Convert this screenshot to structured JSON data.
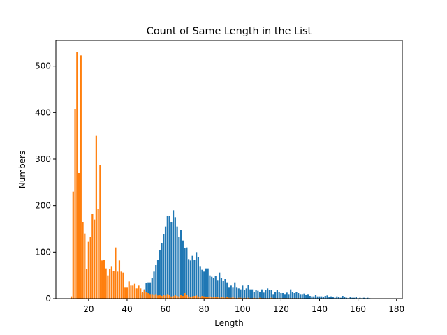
{
  "chart_data": {
    "type": "bar",
    "title": "Count of Same Length in the List",
    "xlabel": "Length",
    "ylabel": "Numbers",
    "xlim": [
      3,
      183
    ],
    "ylim": [
      0,
      555
    ],
    "xticks": [
      20,
      40,
      60,
      80,
      100,
      120,
      140,
      160,
      180
    ],
    "yticks": [
      0,
      100,
      200,
      300,
      400,
      500
    ],
    "grid": false,
    "legend": "none",
    "series": [
      {
        "color": "#1f77b4",
        "x": [
          47,
          48,
          49,
          50,
          51,
          52,
          53,
          54,
          55,
          56,
          57,
          58,
          59,
          60,
          61,
          62,
          63,
          64,
          65,
          66,
          67,
          68,
          69,
          70,
          71,
          72,
          73,
          74,
          75,
          76,
          77,
          78,
          79,
          80,
          81,
          82,
          83,
          84,
          85,
          86,
          87,
          88,
          89,
          90,
          91,
          92,
          93,
          94,
          95,
          96,
          97,
          98,
          99,
          100,
          101,
          102,
          103,
          104,
          105,
          106,
          107,
          108,
          109,
          110,
          111,
          112,
          113,
          114,
          115,
          116,
          117,
          118,
          119,
          120,
          121,
          122,
          123,
          124,
          125,
          126,
          127,
          128,
          129,
          130,
          131,
          132,
          133,
          134,
          135,
          136,
          137,
          138,
          139,
          140,
          141,
          142,
          143,
          144,
          145,
          146,
          147,
          148,
          149,
          150,
          151,
          152,
          153,
          154,
          155,
          156,
          157,
          158,
          159,
          160,
          161,
          162,
          163,
          164,
          165,
          166
        ],
        "values": [
          8,
          12,
          20,
          34,
          35,
          35,
          45,
          58,
          72,
          83,
          105,
          120,
          138,
          155,
          178,
          177,
          165,
          190,
          175,
          155,
          133,
          148,
          125,
          108,
          110,
          85,
          82,
          92,
          83,
          100,
          90,
          70,
          62,
          58,
          65,
          65,
          50,
          47,
          45,
          48,
          40,
          56,
          45,
          38,
          42,
          35,
          25,
          28,
          25,
          35,
          25,
          22,
          20,
          28,
          18,
          22,
          30,
          20,
          20,
          15,
          18,
          17,
          15,
          20,
          13,
          18,
          22,
          19,
          18,
          10,
          15,
          18,
          14,
          12,
          12,
          10,
          13,
          10,
          20,
          15,
          12,
          14,
          12,
          10,
          10,
          11,
          8,
          10,
          6,
          5,
          5,
          8,
          5,
          5,
          5,
          4,
          6,
          7,
          4,
          5,
          4,
          2,
          5,
          3,
          2,
          6,
          4,
          2,
          1,
          3,
          2,
          2,
          3,
          1,
          2,
          1,
          2,
          1,
          2,
          1
        ]
      },
      {
        "color": "#ff7f0e",
        "x": [
          11,
          12,
          13,
          14,
          15,
          16,
          17,
          18,
          19,
          20,
          21,
          22,
          23,
          24,
          25,
          26,
          27,
          28,
          29,
          30,
          31,
          32,
          33,
          34,
          35,
          36,
          37,
          38,
          39,
          40,
          41,
          42,
          43,
          44,
          45,
          46,
          47,
          48,
          49,
          50,
          51,
          52,
          53,
          54,
          55,
          56,
          57,
          58,
          59,
          60,
          61,
          62,
          63,
          64,
          65,
          66,
          67,
          68,
          69,
          70,
          71,
          72,
          73,
          74,
          75,
          76,
          77,
          78,
          79,
          80,
          81,
          82,
          83,
          84,
          85,
          86,
          87,
          88,
          89,
          90,
          91,
          92,
          93,
          94,
          95,
          96,
          97,
          98,
          99,
          100,
          101,
          102,
          103,
          104,
          105,
          106,
          107,
          108,
          109,
          110,
          111,
          112,
          113,
          114,
          115,
          116,
          117,
          118,
          119,
          120,
          121,
          122,
          123,
          124,
          125,
          126,
          127,
          128,
          129,
          130
        ],
        "values": [
          5,
          230,
          408,
          530,
          270,
          523,
          165,
          140,
          63,
          122,
          132,
          183,
          170,
          350,
          193,
          287,
          82,
          84,
          65,
          50,
          63,
          70,
          60,
          110,
          58,
          82,
          58,
          56,
          25,
          25,
          37,
          28,
          28,
          32,
          22,
          28,
          22,
          15,
          18,
          15,
          12,
          10,
          10,
          8,
          10,
          7,
          8,
          6,
          8,
          7,
          10,
          8,
          5,
          6,
          9,
          6,
          5,
          8,
          6,
          12,
          8,
          5,
          4,
          5,
          6,
          7,
          5,
          4,
          6,
          5,
          3,
          4,
          5,
          3,
          4,
          3,
          3,
          2,
          4,
          3,
          2,
          3,
          2,
          2,
          3,
          2,
          1,
          2,
          2,
          1,
          2,
          1,
          2,
          1,
          1,
          2,
          1,
          1,
          2,
          1,
          1,
          1,
          1,
          1,
          2,
          1,
          1,
          1,
          1,
          1,
          1,
          1,
          1,
          1,
          1,
          1,
          1,
          1,
          1,
          1
        ]
      }
    ]
  }
}
